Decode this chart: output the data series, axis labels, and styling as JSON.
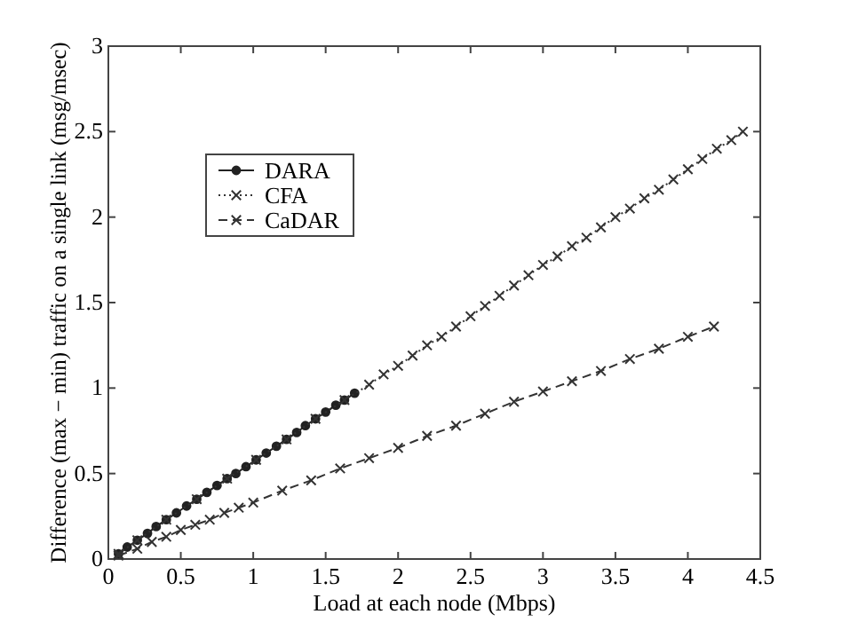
{
  "chart_data": {
    "type": "line",
    "xlabel": "Load at each node (Mbps)",
    "ylabel": "Difference (max − min) traffic on a single link (msg/msec)",
    "xlim": [
      0,
      4.5
    ],
    "xticks": [
      0,
      0.5,
      1,
      1.5,
      2,
      2.5,
      3,
      3.5,
      4,
      4.5
    ],
    "ylim": [
      0,
      3
    ],
    "yticks": [
      0,
      0.5,
      1,
      1.5,
      2,
      2.5,
      3
    ],
    "grid": false,
    "legend": "top left",
    "series": [
      {
        "name": "DARA",
        "color": "#222222",
        "marker": "circle",
        "line_style": "solid",
        "x": [
          0.07,
          0.13,
          0.2,
          0.27,
          0.33,
          0.4,
          0.47,
          0.54,
          0.61,
          0.68,
          0.75,
          0.82,
          0.88,
          0.95,
          1.02,
          1.09,
          1.16,
          1.23,
          1.3,
          1.36,
          1.43,
          1.5,
          1.57,
          1.63,
          1.7
        ],
        "values": [
          0.03,
          0.07,
          0.11,
          0.15,
          0.19,
          0.23,
          0.27,
          0.31,
          0.35,
          0.39,
          0.43,
          0.47,
          0.5,
          0.54,
          0.58,
          0.62,
          0.66,
          0.7,
          0.74,
          0.78,
          0.82,
          0.86,
          0.9,
          0.93,
          0.97
        ]
      },
      {
        "name": "CFA",
        "color": "#333333",
        "marker": "cross",
        "line_style": "dotted",
        "x": [
          0.07,
          0.2,
          0.4,
          0.61,
          0.82,
          1.02,
          1.23,
          1.43,
          1.63,
          1.8,
          1.9,
          2.0,
          2.1,
          2.2,
          2.3,
          2.4,
          2.5,
          2.6,
          2.7,
          2.8,
          2.9,
          3.0,
          3.1,
          3.2,
          3.3,
          3.4,
          3.5,
          3.6,
          3.7,
          3.8,
          3.9,
          4.0,
          4.1,
          4.2,
          4.3,
          4.38
        ],
        "values": [
          0.03,
          0.11,
          0.23,
          0.35,
          0.47,
          0.58,
          0.7,
          0.82,
          0.93,
          1.02,
          1.08,
          1.13,
          1.19,
          1.25,
          1.3,
          1.36,
          1.42,
          1.48,
          1.54,
          1.6,
          1.66,
          1.72,
          1.77,
          1.83,
          1.88,
          1.94,
          2.0,
          2.05,
          2.11,
          2.16,
          2.22,
          2.28,
          2.34,
          2.4,
          2.45,
          2.5
        ]
      },
      {
        "name": "CaDAR",
        "color": "#333333",
        "marker": "cross",
        "line_style": "dashed",
        "x": [
          0.07,
          0.2,
          0.3,
          0.4,
          0.5,
          0.6,
          0.7,
          0.8,
          0.9,
          1.0,
          1.2,
          1.4,
          1.6,
          1.8,
          2.0,
          2.2,
          2.4,
          2.6,
          2.8,
          3.0,
          3.2,
          3.4,
          3.6,
          3.8,
          4.0,
          4.18
        ],
        "values": [
          0.02,
          0.06,
          0.1,
          0.13,
          0.17,
          0.2,
          0.23,
          0.27,
          0.3,
          0.33,
          0.4,
          0.46,
          0.53,
          0.59,
          0.65,
          0.72,
          0.78,
          0.85,
          0.92,
          0.98,
          1.04,
          1.1,
          1.17,
          1.23,
          1.3,
          1.36
        ]
      }
    ]
  }
}
